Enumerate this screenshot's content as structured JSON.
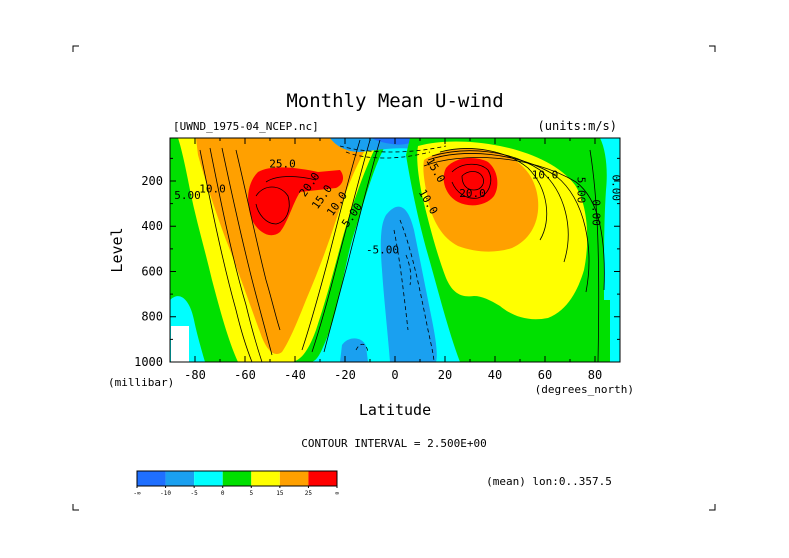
{
  "chart_data": {
    "type": "heatmap",
    "title": "Monthly Mean U-wind",
    "dataset_label": "[UWND_1975-04_NCEP.nc]",
    "units_label": "(units:m/s)",
    "xlabel": "Latitude",
    "ylabel": "Level",
    "x_units": "(degrees_north)",
    "y_units": "(millibar)",
    "xlim": [
      -90,
      90
    ],
    "ylim": [
      1000,
      10
    ],
    "x_ticks": [
      -80,
      -60,
      -40,
      -20,
      0,
      20,
      40,
      60,
      80
    ],
    "x_tick_labels": [
      "-80",
      "-60",
      "-40",
      "-20",
      "0",
      "20",
      "40",
      "60",
      "80"
    ],
    "y_ticks": [
      200,
      400,
      600,
      800,
      1000
    ],
    "y_tick_labels": [
      "200",
      "400",
      "600",
      "800",
      "1000"
    ],
    "contour_interval_text": "CONTOUR INTERVAL = 2.500E+00",
    "mean_note": "(mean) lon:0..357.5",
    "contour_labels": [
      {
        "text": "25.0",
        "lat": -45,
        "level": 140
      },
      {
        "text": "20.0",
        "lat": -33,
        "level": 225
      },
      {
        "text": "15.0",
        "lat": -28,
        "level": 280
      },
      {
        "text": "10.0",
        "lat": -22,
        "level": 310
      },
      {
        "text": "5.00",
        "lat": -16,
        "level": 360
      },
      {
        "text": "10.0",
        "lat": -73,
        "level": 250
      },
      {
        "text": "5.00",
        "lat": -83,
        "level": 280
      },
      {
        "text": "-5.00",
        "lat": -5,
        "level": 520
      },
      {
        "text": "10.0",
        "lat": 12,
        "level": 300
      },
      {
        "text": "15.0",
        "lat": 15,
        "level": 160
      },
      {
        "text": "20.0",
        "lat": 31,
        "level": 270
      },
      {
        "text": "10.0",
        "lat": 60,
        "level": 190
      },
      {
        "text": "5.00",
        "lat": 73,
        "level": 240
      },
      {
        "text": "0.00",
        "lat": 79,
        "level": 340
      },
      {
        "text": "0.00",
        "lat": 87,
        "level": 230
      }
    ],
    "color_levels": [
      {
        "range": "< -10",
        "color": "#1f6fff"
      },
      {
        "range": "-10 to -5",
        "color": "#1aa0f0"
      },
      {
        "range": "-5 to 0",
        "color": "#00ffff"
      },
      {
        "range": "0 to 5",
        "color": "#00e000"
      },
      {
        "range": "5 to 15",
        "color": "#ffff00"
      },
      {
        "range": "15 to 25",
        "color": "#ffa000"
      },
      {
        "range": "> 25",
        "color": "#ff0000"
      }
    ],
    "colorbar_ticks": [
      "-∞",
      "-10",
      "-5",
      "0",
      "5",
      "15",
      "25",
      "∞"
    ],
    "grid": false
  }
}
